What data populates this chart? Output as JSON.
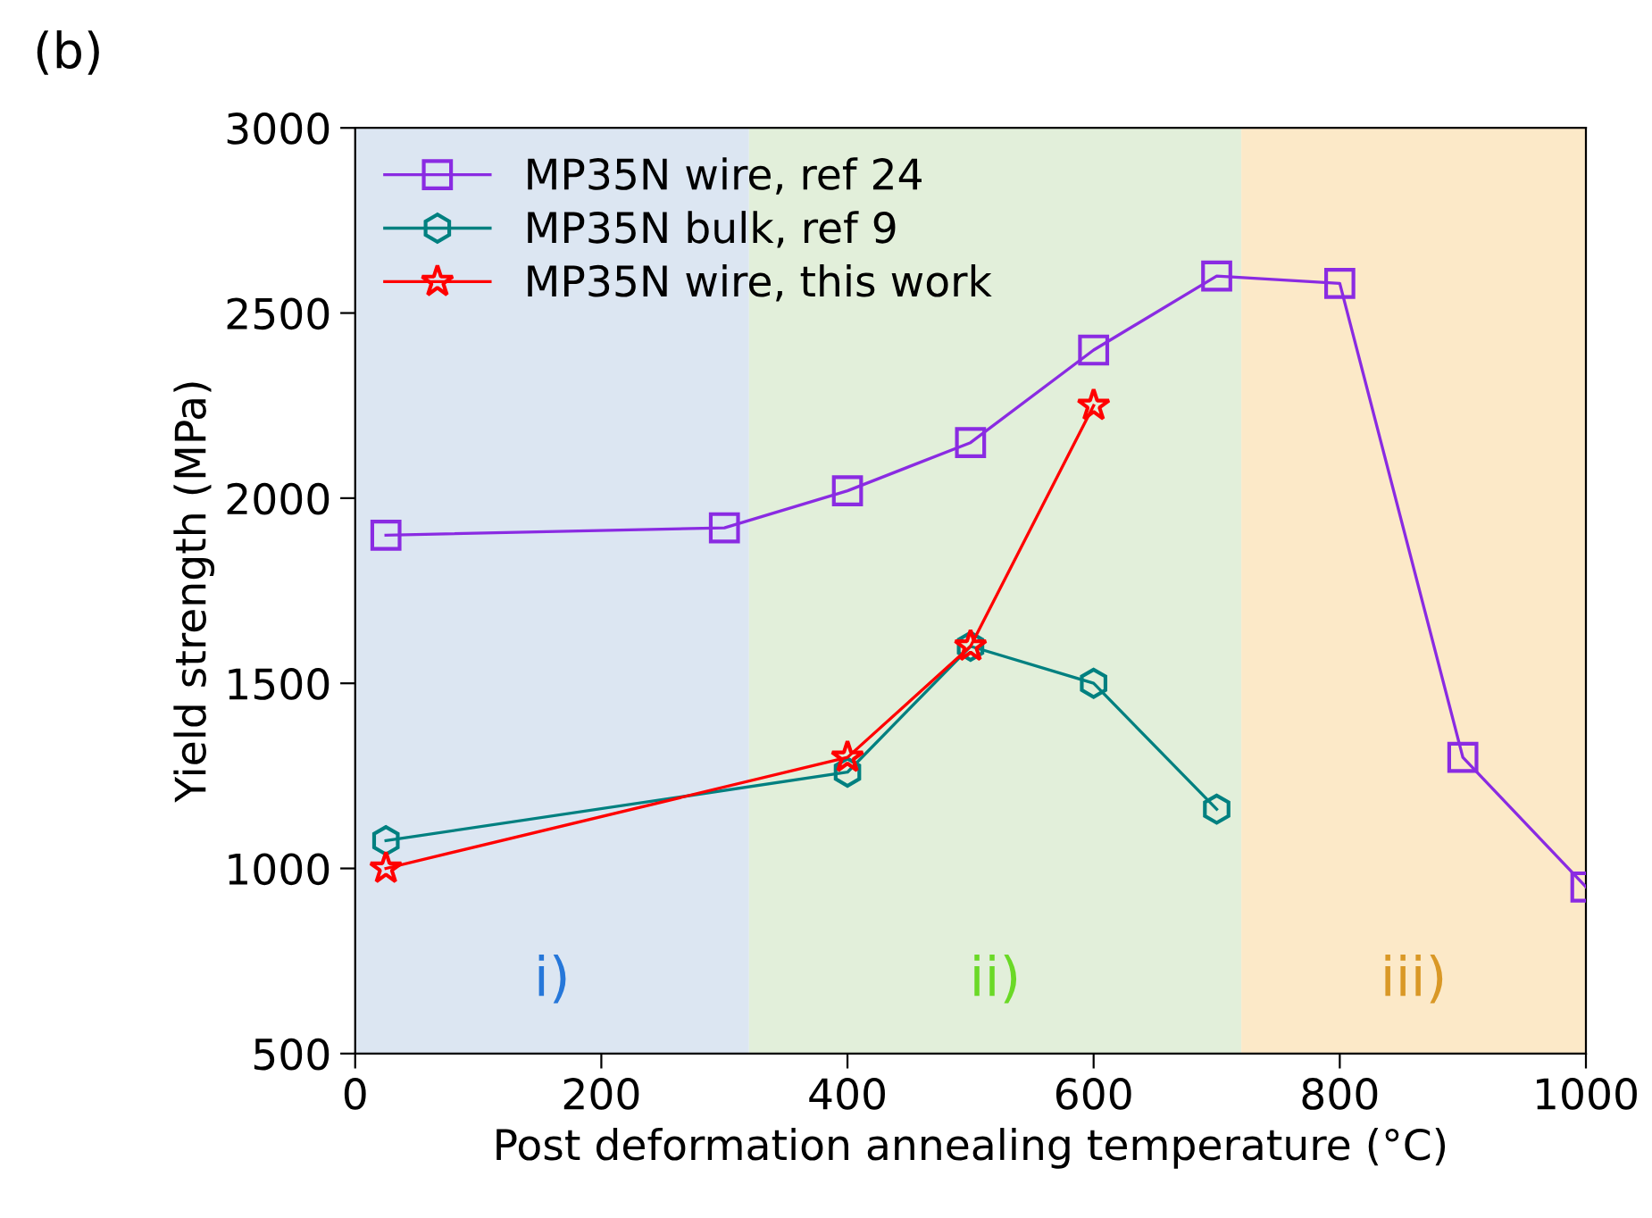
{
  "chart_data": {
    "type": "line",
    "xlabel": "Post deformation annealing temperature (°C)",
    "ylabel": "Yield strength (MPa)",
    "xlim": [
      0,
      1000
    ],
    "xticks": [
      0,
      200,
      400,
      600,
      800,
      1000
    ],
    "ylim": [
      500,
      3000
    ],
    "yticks": [
      500,
      1000,
      1500,
      2000,
      2500,
      3000
    ],
    "grid": false,
    "legend": "top left",
    "line_style": "solid",
    "series": [
      {
        "name": "MP35N wire, ref 24",
        "color": "#8a2be2",
        "marker": "square",
        "x": [
          25,
          300,
          400,
          500,
          600,
          700,
          800,
          900,
          1000
        ],
        "values": [
          1900,
          1920,
          2020,
          2150,
          2400,
          2600,
          2580,
          1300,
          950
        ]
      },
      {
        "name": "MP35N bulk, ref 9",
        "color": "#008080",
        "marker": "circle",
        "x": [
          25,
          400,
          500,
          600,
          700
        ],
        "values": [
          1075,
          1260,
          1600,
          1500,
          1160
        ]
      },
      {
        "name": "MP35N wire, this work",
        "color": "#ff0000",
        "marker": "star",
        "x": [
          25,
          400,
          500,
          600
        ],
        "values": [
          1000,
          1300,
          1600,
          2250
        ]
      }
    ],
    "bands": [
      {
        "axis": "x",
        "from": 0,
        "to": 320,
        "label": "i)",
        "color": "#dce6f2"
      },
      {
        "axis": "x",
        "from": 320,
        "to": 720,
        "label": "ii)",
        "color": "#e2efda"
      },
      {
        "axis": "x",
        "from": 720,
        "to": 1000,
        "label": "iii)",
        "color": "#fce9c8"
      }
    ],
    "annotations": [
      "(b)"
    ]
  }
}
